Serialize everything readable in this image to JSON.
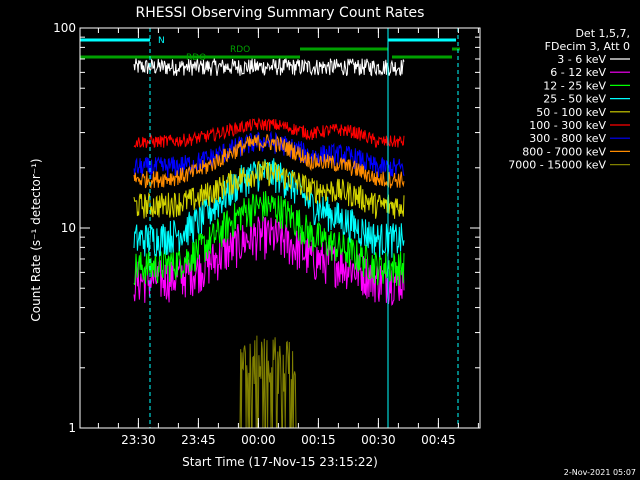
{
  "chart_data": {
    "type": "line",
    "title": "RHESSI Observing Summary Count Rates",
    "xlabel": "Start Time (17-Nov-15 23:15:22)",
    "ylabel": "Count Rate (s⁻¹ detector⁻¹)",
    "yscale": "log",
    "ylim": [
      1,
      100
    ],
    "y_ticks": [
      "1",
      "10",
      "100"
    ],
    "xlim": [
      "23:15:22",
      "00:55:00"
    ],
    "x_ticks": [
      "23:30",
      "23:45",
      "00:00",
      "00:15",
      "00:30",
      "00:45"
    ],
    "x_tick_minutes": [
      14.6,
      29.6,
      44.6,
      59.6,
      74.6,
      89.6
    ],
    "x_range_minutes": [
      0,
      100
    ],
    "legend": {
      "position": "top-right",
      "header": [
        "Det 1,5,7,",
        "FDecim 3, Att 0"
      ]
    },
    "series": [
      {
        "name": "3 - 6 keV",
        "color": "#ffffff",
        "level": 64,
        "noise": 0.04,
        "shape": "flat"
      },
      {
        "name": "6 - 12 keV",
        "color": "#ff00ff",
        "level": 5.5,
        "peak": 9.2,
        "noise": 0.1,
        "shape": "dome"
      },
      {
        "name": "12 - 25 keV",
        "color": "#00ff00",
        "level": 6.4,
        "peak": 13,
        "noise": 0.08,
        "shape": "dome"
      },
      {
        "name": "25 - 50 keV",
        "color": "#00ffff",
        "level": 8.8,
        "peak": 19,
        "noise": 0.08,
        "shape": "dome"
      },
      {
        "name": "50 - 100 keV",
        "color": "#d4d400",
        "level": 13,
        "peak": 19,
        "noise": 0.06,
        "shape": "dome"
      },
      {
        "name": "100 - 300 keV",
        "color": "#ff0000",
        "level": 27,
        "peak": 33,
        "noise": 0.03,
        "shape": "dome"
      },
      {
        "name": "300 - 800 keV",
        "color": "#0000ff",
        "level": 20,
        "peak": 27,
        "noise": 0.05,
        "shape": "dome"
      },
      {
        "name": "800 - 7000 keV",
        "color": "#ff8c00",
        "level": 17.5,
        "peak": 27,
        "noise": 0.04,
        "shape": "dome"
      },
      {
        "name": "7000 - 15000 keV",
        "color": "#808000",
        "level": 1.5,
        "noise": 0.3,
        "shape": "spiky"
      }
    ],
    "flags": [
      {
        "name": "N",
        "color": "#00ffff",
        "segments": [
          [
            0,
            17.5
          ],
          [
            77,
            94
          ]
        ]
      },
      {
        "name": "RDO",
        "color": "#00a000",
        "segments": [
          [
            55,
            77
          ],
          [
            93,
            95
          ]
        ]
      },
      {
        "name": "RDO",
        "color": "#00a000",
        "segments": [
          [
            0,
            55
          ],
          [
            78,
            93
          ]
        ]
      }
    ],
    "vertical_lines": [
      {
        "x_minutes": 0,
        "color": "#00ffff",
        "style": "solid"
      },
      {
        "x_minutes": 17.5,
        "color": "#00ffff",
        "style": "dashed"
      },
      {
        "x_minutes": 77,
        "color": "#00ffff",
        "style": "solid"
      },
      {
        "x_minutes": 94.5,
        "color": "#00ffff",
        "style": "dashed"
      }
    ],
    "data_window_minutes": [
      13.5,
      81
    ]
  },
  "footer": {
    "date": "2-Nov-2021 05:07"
  }
}
